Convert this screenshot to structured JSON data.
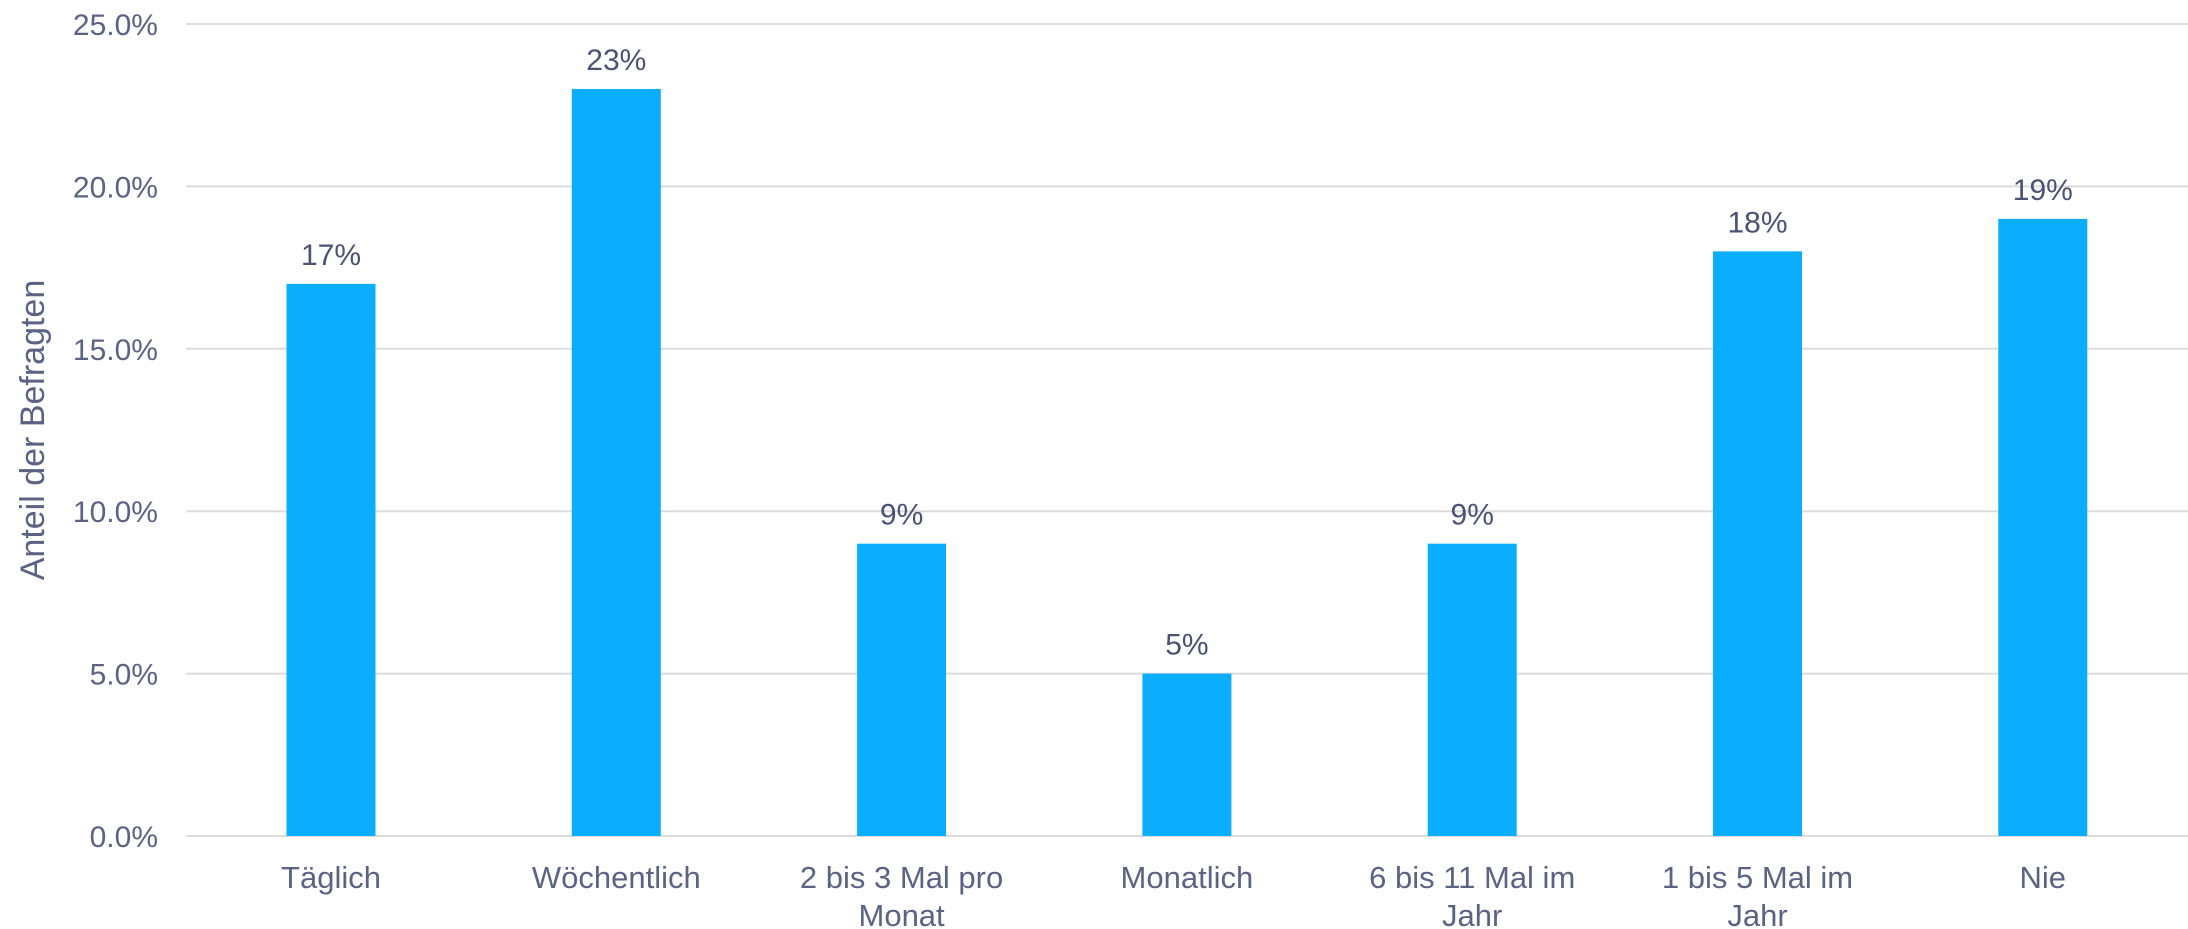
{
  "chart_data": {
    "type": "bar",
    "title": "",
    "xlabel": "",
    "ylabel": "Anteil der Befragten",
    "categories": [
      "Täglich",
      "Wöchentlich",
      "2 bis 3 Mal pro Monat",
      "Monatlich",
      "6 bis 11 Mal im Jahr",
      "1 bis 5 Mal im Jahr",
      "Nie"
    ],
    "category_lines": [
      [
        "Täglich"
      ],
      [
        "Wöchentlich"
      ],
      [
        "2 bis 3 Mal pro",
        "Monat"
      ],
      [
        "Monatlich"
      ],
      [
        "6 bis 11 Mal im",
        "Jahr"
      ],
      [
        "1 bis 5 Mal im",
        "Jahr"
      ],
      [
        "Nie"
      ]
    ],
    "values": [
      17,
      23,
      9,
      5,
      9,
      18,
      19
    ],
    "data_labels": [
      "17%",
      "23%",
      "9%",
      "5%",
      "9%",
      "18%",
      "19%"
    ],
    "ylim": [
      0,
      25
    ],
    "yticks": [
      0,
      5,
      10,
      15,
      20,
      25
    ],
    "ytick_labels": [
      "0.0%",
      "5.0%",
      "10.0%",
      "15.0%",
      "20.0%",
      "25.0%"
    ],
    "grid": true,
    "legend": "none",
    "colors": {
      "bar": "#0badfd",
      "gridline": "#dcdcdc",
      "text": "#5b6384"
    }
  }
}
